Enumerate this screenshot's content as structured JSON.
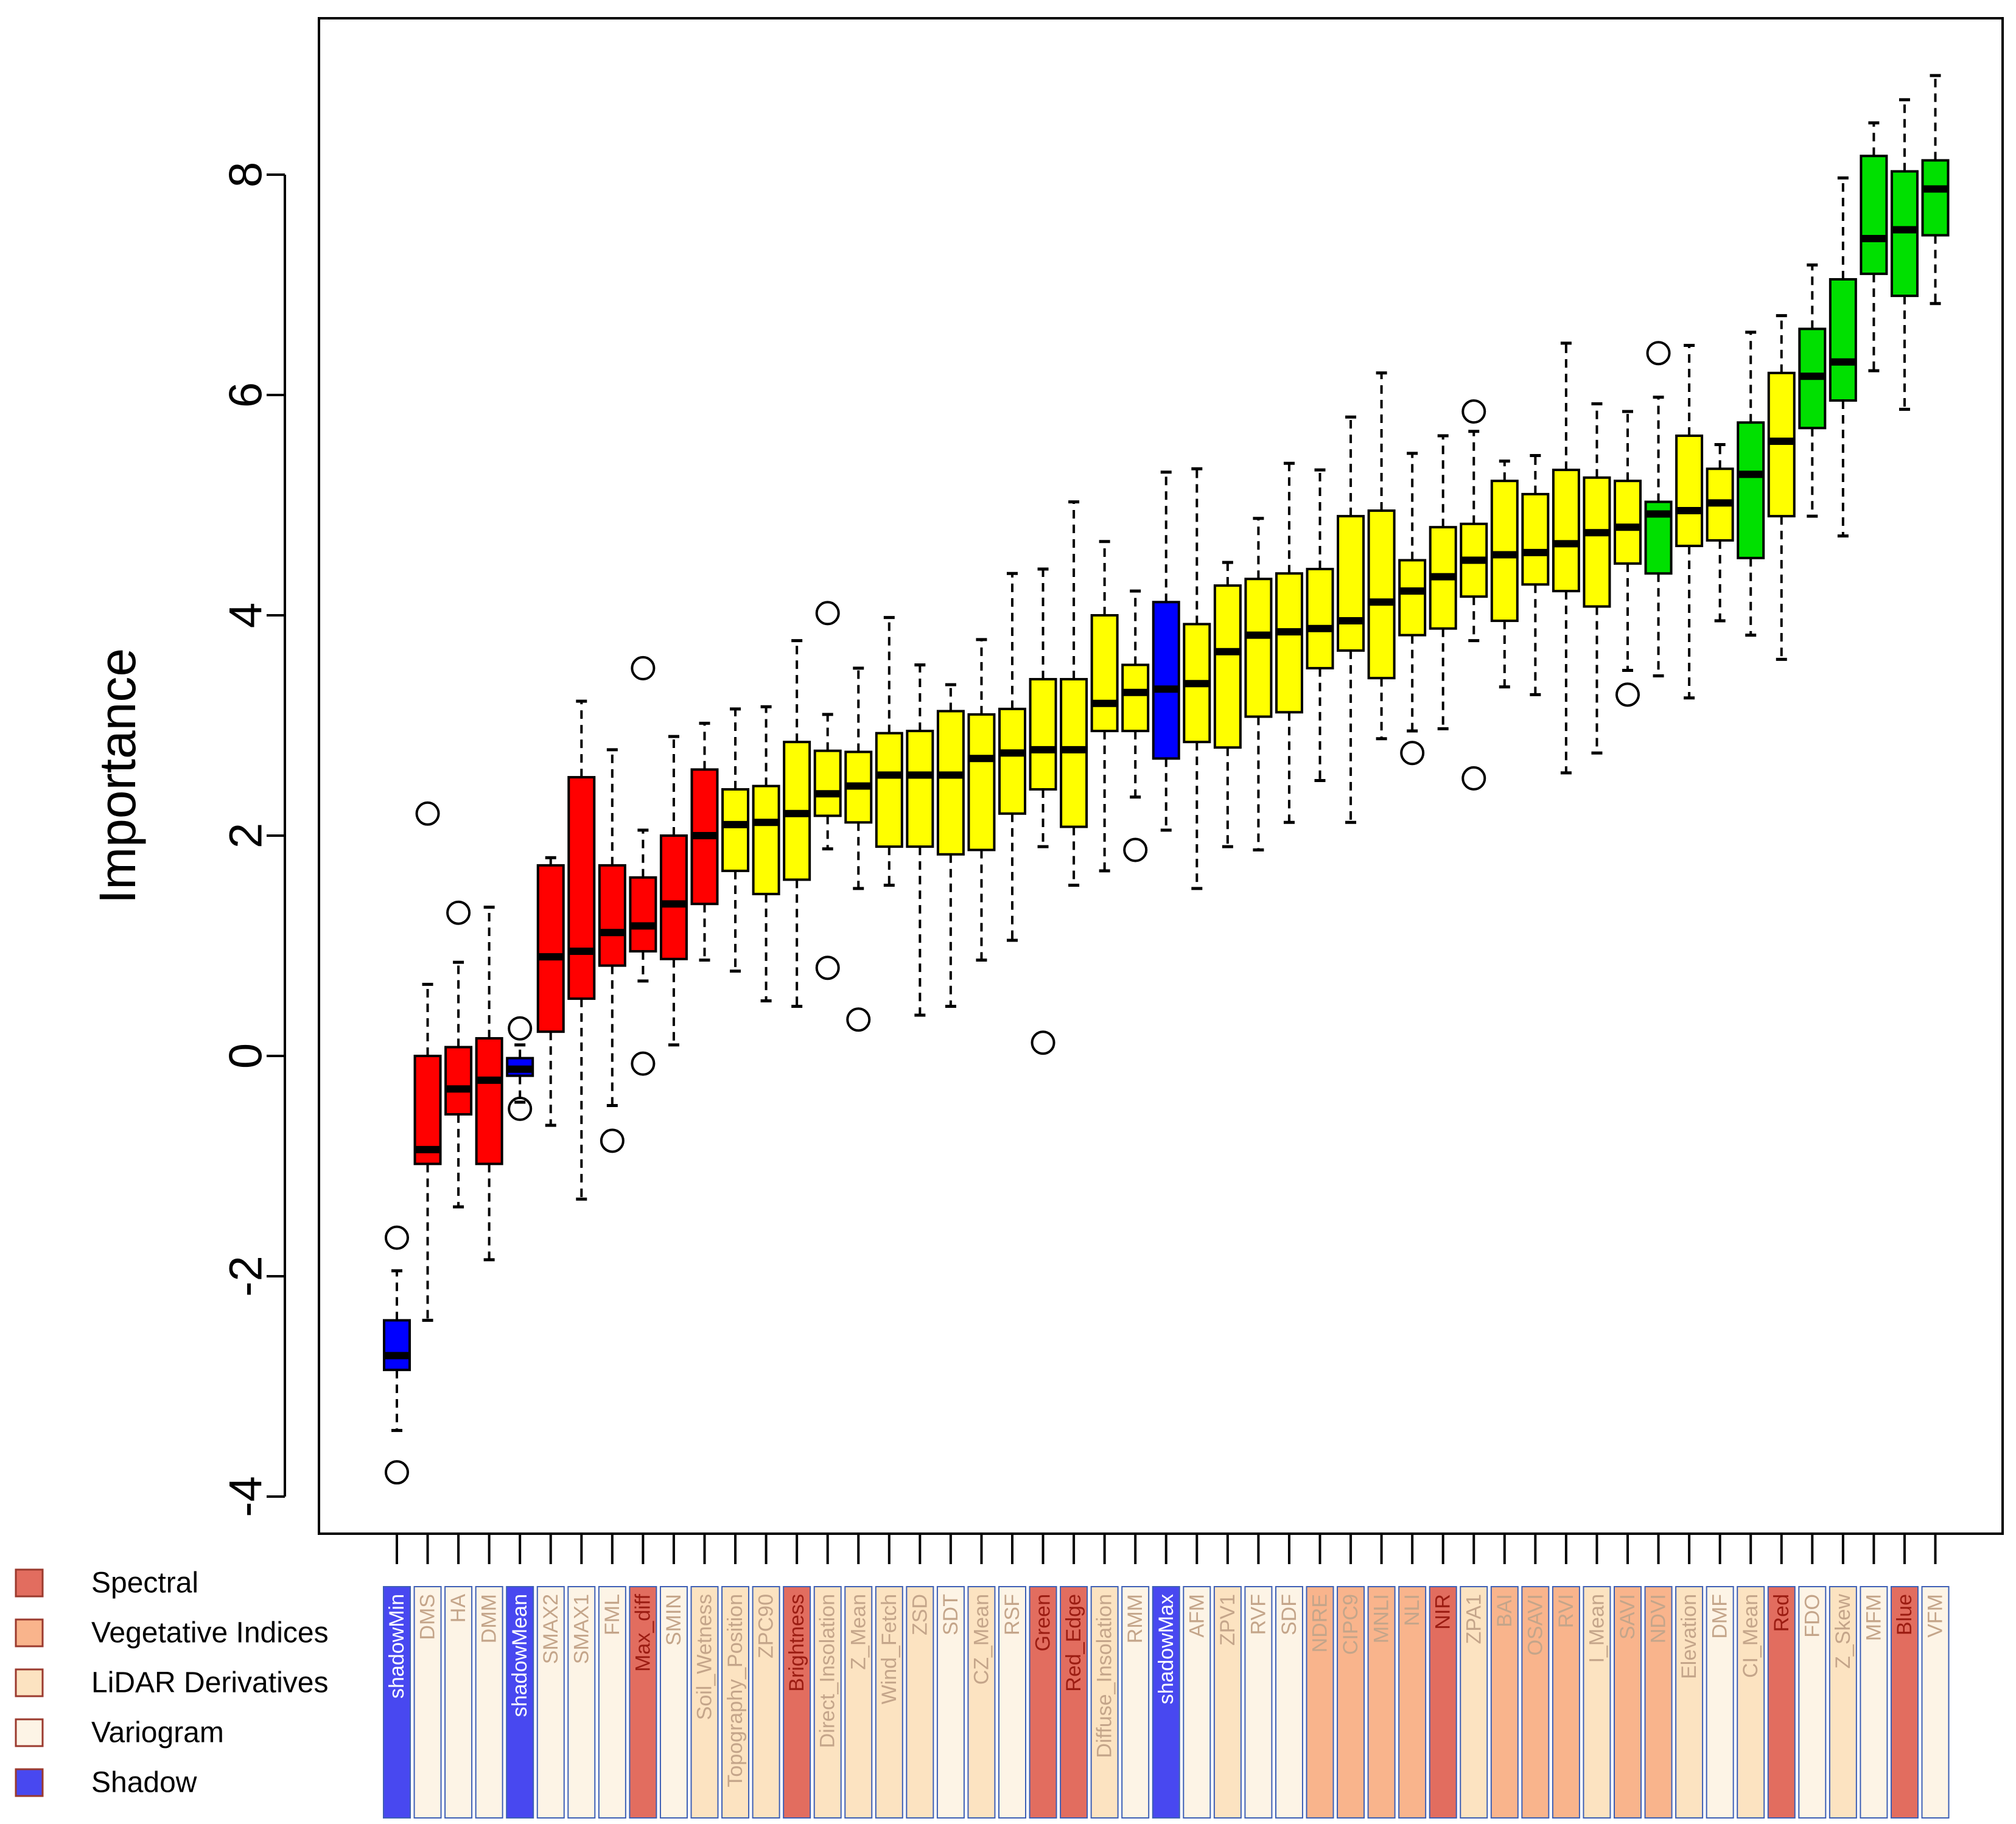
{
  "colors": {
    "box_red": "#ff0000",
    "box_yellow": "#ffff00",
    "box_green": "#00e000",
    "box_blue": "#0000ff",
    "cat_spectral": "#e26d5f",
    "cat_vegetative": "#f9b48c",
    "cat_lidar": "#fce3c1",
    "cat_variogram": "#fdf4e6",
    "cat_shadow": "#4848f0",
    "label_text_spectral": "#9b1c12",
    "label_text_other": "#c4a58a",
    "label_text_shadow": "#ffffff",
    "label_border": "#3d5fb5"
  },
  "legend": [
    {
      "label": "Spectral",
      "category": "spectral"
    },
    {
      "label": "Vegetative Indices",
      "category": "vegetative"
    },
    {
      "label": "LiDAR Derivatives",
      "category": "lidar"
    },
    {
      "label": "Variogram",
      "category": "variogram"
    },
    {
      "label": "Shadow",
      "category": "shadow"
    }
  ],
  "chart_data": {
    "type": "boxplot",
    "title": "",
    "xlabel": "",
    "ylabel": "Importance",
    "ylim": [
      -4.6,
      9.2
    ],
    "yticks": [
      -4,
      -2,
      0,
      2,
      4,
      6,
      8
    ],
    "ytick_labels": [
      "-4",
      "-2",
      "0",
      "2",
      "4",
      "6",
      "8"
    ],
    "grid": false,
    "legend_position": "bottom-left",
    "features": [
      {
        "name": "shadowMin",
        "category": "shadow",
        "box": "blue",
        "wl": -3.4,
        "q1": -2.85,
        "med": -2.72,
        "q3": -2.4,
        "wh": -1.95,
        "outliers": [
          -1.65,
          -3.78
        ]
      },
      {
        "name": "DMS",
        "category": "variogram",
        "box": "red",
        "wl": -2.4,
        "q1": -0.98,
        "med": -0.85,
        "q3": 0.0,
        "wh": 0.65,
        "outliers": [
          2.2
        ]
      },
      {
        "name": "HA",
        "category": "variogram",
        "box": "red",
        "wl": -1.37,
        "q1": -0.53,
        "med": -0.3,
        "q3": 0.08,
        "wh": 0.85,
        "outliers": [
          1.3
        ]
      },
      {
        "name": "DMM",
        "category": "variogram",
        "box": "red",
        "wl": -1.85,
        "q1": -0.98,
        "med": -0.22,
        "q3": 0.16,
        "wh": 1.35,
        "outliers": []
      },
      {
        "name": "shadowMean",
        "category": "shadow",
        "box": "blue",
        "wl": -0.42,
        "q1": -0.18,
        "med": -0.12,
        "q3": -0.02,
        "wh": 0.1,
        "outliers": [
          0.25,
          -0.48
        ]
      },
      {
        "name": "SMAX2",
        "category": "variogram",
        "box": "red",
        "wl": -0.63,
        "q1": 0.22,
        "med": 0.9,
        "q3": 1.73,
        "wh": 1.8,
        "outliers": []
      },
      {
        "name": "SMAX1",
        "category": "variogram",
        "box": "red",
        "wl": -1.3,
        "q1": 0.52,
        "med": 0.95,
        "q3": 2.53,
        "wh": 3.22,
        "outliers": []
      },
      {
        "name": "FML",
        "category": "variogram",
        "box": "red",
        "wl": -0.45,
        "q1": 0.82,
        "med": 1.12,
        "q3": 1.73,
        "wh": 2.78,
        "outliers": [
          -0.77
        ]
      },
      {
        "name": "Max_diff",
        "category": "spectral",
        "box": "red",
        "wl": 0.68,
        "q1": 0.95,
        "med": 1.18,
        "q3": 1.62,
        "wh": 2.05,
        "outliers": [
          3.52,
          -0.07
        ]
      },
      {
        "name": "SMIN",
        "category": "variogram",
        "box": "red",
        "wl": 0.1,
        "q1": 0.88,
        "med": 1.38,
        "q3": 2.0,
        "wh": 2.9,
        "outliers": []
      },
      {
        "name": "Soil_Wetness",
        "category": "lidar",
        "box": "red",
        "wl": 0.87,
        "q1": 1.38,
        "med": 2.0,
        "q3": 2.6,
        "wh": 3.02,
        "outliers": []
      },
      {
        "name": "Topography_Position",
        "category": "lidar",
        "box": "yellow",
        "wl": 0.77,
        "q1": 1.68,
        "med": 2.1,
        "q3": 2.42,
        "wh": 3.15,
        "outliers": []
      },
      {
        "name": "ZPC90",
        "category": "lidar",
        "box": "yellow",
        "wl": 0.5,
        "q1": 1.47,
        "med": 2.12,
        "q3": 2.45,
        "wh": 3.17,
        "outliers": []
      },
      {
        "name": "Brightness",
        "category": "spectral",
        "box": "yellow",
        "wl": 0.45,
        "q1": 1.6,
        "med": 2.2,
        "q3": 2.85,
        "wh": 3.77,
        "outliers": []
      },
      {
        "name": "Direct_Insolation",
        "category": "lidar",
        "box": "yellow",
        "wl": 1.88,
        "q1": 2.18,
        "med": 2.38,
        "q3": 2.77,
        "wh": 3.1,
        "outliers": [
          4.02,
          0.8
        ]
      },
      {
        "name": "Z_Mean",
        "category": "lidar",
        "box": "yellow",
        "wl": 1.52,
        "q1": 2.12,
        "med": 2.45,
        "q3": 2.76,
        "wh": 3.52,
        "outliers": [
          0.33
        ]
      },
      {
        "name": "Wind_Fetch",
        "category": "lidar",
        "box": "yellow",
        "wl": 1.55,
        "q1": 1.9,
        "med": 2.55,
        "q3": 2.93,
        "wh": 3.98,
        "outliers": []
      },
      {
        "name": "ZSD",
        "category": "lidar",
        "box": "yellow",
        "wl": 0.37,
        "q1": 1.9,
        "med": 2.55,
        "q3": 2.95,
        "wh": 3.55,
        "outliers": []
      },
      {
        "name": "SDT",
        "category": "variogram",
        "box": "yellow",
        "wl": 0.45,
        "q1": 1.83,
        "med": 2.55,
        "q3": 3.13,
        "wh": 3.37,
        "outliers": []
      },
      {
        "name": "CZ_Mean",
        "category": "lidar",
        "box": "yellow",
        "wl": 0.87,
        "q1": 1.87,
        "med": 2.7,
        "q3": 3.1,
        "wh": 3.78,
        "outliers": []
      },
      {
        "name": "RSF",
        "category": "variogram",
        "box": "yellow",
        "wl": 1.05,
        "q1": 2.2,
        "med": 2.75,
        "q3": 3.15,
        "wh": 4.38,
        "outliers": []
      },
      {
        "name": "Green",
        "category": "spectral",
        "box": "yellow",
        "wl": 1.9,
        "q1": 2.42,
        "med": 2.78,
        "q3": 3.42,
        "wh": 4.42,
        "outliers": [
          0.12
        ]
      },
      {
        "name": "Red_Edge",
        "category": "spectral",
        "box": "yellow",
        "wl": 1.55,
        "q1": 2.08,
        "med": 2.78,
        "q3": 3.42,
        "wh": 5.03,
        "outliers": []
      },
      {
        "name": "Diffuse_Insolation",
        "category": "lidar",
        "box": "yellow",
        "wl": 1.68,
        "q1": 2.95,
        "med": 3.2,
        "q3": 4.0,
        "wh": 4.67,
        "outliers": []
      },
      {
        "name": "RMM",
        "category": "variogram",
        "box": "yellow",
        "wl": 2.35,
        "q1": 2.95,
        "med": 3.3,
        "q3": 3.55,
        "wh": 4.22,
        "outliers": [
          1.87
        ]
      },
      {
        "name": "shadowMax",
        "category": "shadow",
        "box": "blue",
        "wl": 2.05,
        "q1": 2.7,
        "med": 3.33,
        "q3": 4.12,
        "wh": 5.3,
        "outliers": []
      },
      {
        "name": "AFM",
        "category": "variogram",
        "box": "yellow",
        "wl": 1.52,
        "q1": 2.85,
        "med": 3.38,
        "q3": 3.92,
        "wh": 5.33,
        "outliers": []
      },
      {
        "name": "ZPV1",
        "category": "lidar",
        "box": "yellow",
        "wl": 1.9,
        "q1": 2.8,
        "med": 3.67,
        "q3": 4.27,
        "wh": 4.48,
        "outliers": []
      },
      {
        "name": "RVF",
        "category": "variogram",
        "box": "yellow",
        "wl": 1.87,
        "q1": 3.08,
        "med": 3.82,
        "q3": 4.33,
        "wh": 4.88,
        "outliers": []
      },
      {
        "name": "SDF",
        "category": "variogram",
        "box": "yellow",
        "wl": 2.12,
        "q1": 3.12,
        "med": 3.85,
        "q3": 4.38,
        "wh": 5.38,
        "outliers": []
      },
      {
        "name": "NDRE",
        "category": "vegetative",
        "box": "yellow",
        "wl": 2.5,
        "q1": 3.52,
        "med": 3.88,
        "q3": 4.42,
        "wh": 5.32,
        "outliers": []
      },
      {
        "name": "CIPC9",
        "category": "vegetative",
        "box": "yellow",
        "wl": 2.12,
        "q1": 3.68,
        "med": 3.95,
        "q3": 4.9,
        "wh": 5.8,
        "outliers": []
      },
      {
        "name": "MNLI",
        "category": "vegetative",
        "box": "yellow",
        "wl": 2.88,
        "q1": 3.43,
        "med": 4.12,
        "q3": 4.95,
        "wh": 6.2,
        "outliers": []
      },
      {
        "name": "NLI",
        "category": "vegetative",
        "box": "yellow",
        "wl": 2.95,
        "q1": 3.82,
        "med": 4.22,
        "q3": 4.5,
        "wh": 5.47,
        "outliers": [
          2.75
        ]
      },
      {
        "name": "NIR",
        "category": "spectral",
        "box": "yellow",
        "wl": 2.97,
        "q1": 3.88,
        "med": 4.35,
        "q3": 4.8,
        "wh": 5.63,
        "outliers": []
      },
      {
        "name": "ZPA1",
        "category": "lidar",
        "box": "yellow",
        "wl": 3.77,
        "q1": 4.17,
        "med": 4.5,
        "q3": 4.83,
        "wh": 5.67,
        "outliers": [
          5.85,
          2.52
        ]
      },
      {
        "name": "BAI",
        "category": "vegetative",
        "box": "yellow",
        "wl": 3.35,
        "q1": 3.95,
        "med": 4.55,
        "q3": 5.22,
        "wh": 5.4,
        "outliers": []
      },
      {
        "name": "OSAVI",
        "category": "vegetative",
        "box": "yellow",
        "wl": 3.28,
        "q1": 4.28,
        "med": 4.57,
        "q3": 5.1,
        "wh": 5.45,
        "outliers": []
      },
      {
        "name": "RVI",
        "category": "vegetative",
        "box": "yellow",
        "wl": 2.57,
        "q1": 4.22,
        "med": 4.65,
        "q3": 5.32,
        "wh": 6.47,
        "outliers": []
      },
      {
        "name": "I_Mean",
        "category": "lidar",
        "box": "yellow",
        "wl": 2.75,
        "q1": 4.08,
        "med": 4.75,
        "q3": 5.25,
        "wh": 5.92,
        "outliers": []
      },
      {
        "name": "SAVI",
        "category": "vegetative",
        "box": "yellow",
        "wl": 3.5,
        "q1": 4.47,
        "med": 4.8,
        "q3": 5.22,
        "wh": 5.85,
        "outliers": [
          3.28
        ]
      },
      {
        "name": "NDVI",
        "category": "vegetative",
        "box": "green",
        "wl": 3.45,
        "q1": 4.38,
        "med": 4.92,
        "q3": 5.03,
        "wh": 5.98,
        "outliers": [
          6.38
        ]
      },
      {
        "name": "Elevation",
        "category": "lidar",
        "box": "yellow",
        "wl": 3.25,
        "q1": 4.63,
        "med": 4.95,
        "q3": 5.63,
        "wh": 6.45,
        "outliers": []
      },
      {
        "name": "DMF",
        "category": "variogram",
        "box": "yellow",
        "wl": 3.95,
        "q1": 4.68,
        "med": 5.02,
        "q3": 5.33,
        "wh": 5.55,
        "outliers": []
      },
      {
        "name": "CI_Mean",
        "category": "lidar",
        "box": "green",
        "wl": 3.82,
        "q1": 4.52,
        "med": 5.28,
        "q3": 5.75,
        "wh": 6.57,
        "outliers": []
      },
      {
        "name": "Red",
        "category": "spectral",
        "box": "yellow",
        "wl": 3.6,
        "q1": 4.9,
        "med": 5.58,
        "q3": 6.2,
        "wh": 6.72,
        "outliers": []
      },
      {
        "name": "FDO",
        "category": "variogram",
        "box": "green",
        "wl": 4.9,
        "q1": 5.7,
        "med": 6.17,
        "q3": 6.6,
        "wh": 7.18,
        "outliers": []
      },
      {
        "name": "Z_Skew",
        "category": "lidar",
        "box": "green",
        "wl": 4.72,
        "q1": 5.95,
        "med": 6.3,
        "q3": 7.05,
        "wh": 7.97,
        "outliers": []
      },
      {
        "name": "MFM",
        "category": "variogram",
        "box": "green",
        "wl": 6.22,
        "q1": 7.1,
        "med": 7.42,
        "q3": 8.17,
        "wh": 8.47,
        "outliers": []
      },
      {
        "name": "Blue",
        "category": "spectral",
        "box": "green",
        "wl": 5.87,
        "q1": 6.9,
        "med": 7.5,
        "q3": 8.03,
        "wh": 8.68,
        "outliers": []
      },
      {
        "name": "VFM",
        "category": "variogram",
        "box": "green",
        "wl": 6.83,
        "q1": 7.45,
        "med": 7.87,
        "q3": 8.13,
        "wh": 8.9,
        "outliers": []
      }
    ]
  }
}
